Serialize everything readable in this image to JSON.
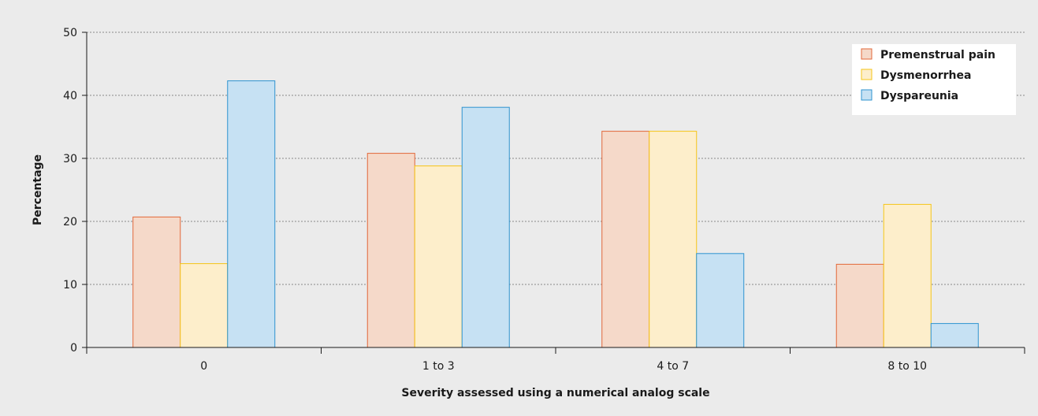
{
  "chart_data": {
    "type": "bar",
    "categories": [
      "0",
      "1 to 3",
      "4 to 7",
      "8 to 10"
    ],
    "series": [
      {
        "name": "Premenstrual pain",
        "values": [
          20.7,
          30.8,
          34.3,
          13.2
        ],
        "fill": "#f5d9c9",
        "stroke": "#e2683a"
      },
      {
        "name": "Dysmenorrhea",
        "values": [
          13.3,
          28.8,
          34.3,
          22.7
        ],
        "fill": "#fdeecb",
        "stroke": "#f5c518"
      },
      {
        "name": "Dyspareunia",
        "values": [
          42.3,
          38.1,
          14.9,
          3.8
        ],
        "fill": "#c6e1f3",
        "stroke": "#2e93cf"
      }
    ],
    "xlabel": "Severity assessed using a numerical analog scale",
    "ylabel": "Percentage",
    "ylim": [
      0,
      50
    ],
    "yticks": [
      "0",
      "10",
      "20",
      "30",
      "40",
      "50"
    ],
    "grid": true,
    "legend_position": "top-right"
  }
}
